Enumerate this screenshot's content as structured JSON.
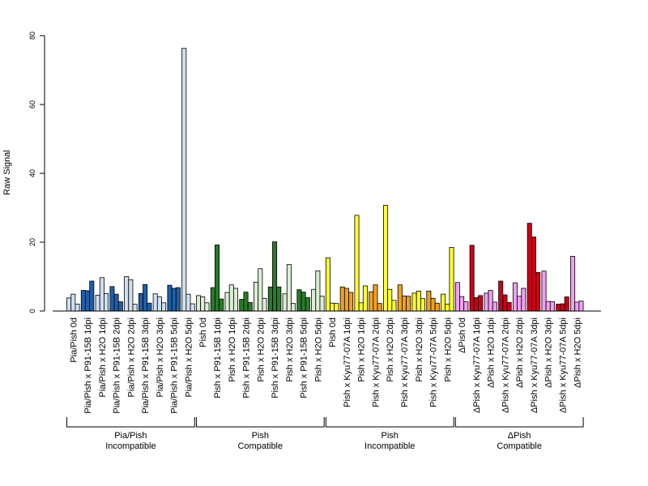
{
  "chart_data": {
    "type": "bar",
    "ylabel": "Raw Signal",
    "ylim": [
      0,
      80
    ],
    "yticks": [
      0,
      20,
      40,
      60,
      80
    ],
    "bars_per_category": 3,
    "categories": [
      {
        "label": "Pia/Pish 0d",
        "values": [
          3.8,
          4.9,
          2.0
        ],
        "color": "#cfe0f0"
      },
      {
        "label": "Pia/Pish x P91-15B 1dpi",
        "values": [
          6.0,
          5.9,
          8.7
        ],
        "color": "#1f5fa8"
      },
      {
        "label": "Pia/Pish x H2O 1dpi",
        "values": [
          4.6,
          9.7,
          5.1
        ],
        "color": "#cfe0f0"
      },
      {
        "label": "Pia/Pish x P91-15B 2dpi",
        "values": [
          7.1,
          4.9,
          2.7
        ],
        "color": "#1f5fa8"
      },
      {
        "label": "Pia/Pish x H2O 2dpi",
        "values": [
          10.0,
          9.1,
          2.0
        ],
        "color": "#cfe0f0"
      },
      {
        "label": "Pia/Pish x P91-15B 3dpi",
        "values": [
          5.1,
          7.7,
          2.3
        ],
        "color": "#1f5fa8"
      },
      {
        "label": "Pia/Pish x H2O 3dpi",
        "values": [
          5.0,
          4.1,
          2.4
        ],
        "color": "#cfe0f0"
      },
      {
        "label": "Pia/Pish x P91-15B 5dpi",
        "values": [
          7.5,
          6.6,
          6.8
        ],
        "color": "#1f5fa8"
      },
      {
        "label": "Pia/Pish x H2O 5dpi",
        "values": [
          76.3,
          4.9,
          2.1
        ],
        "color": "#cfe0f0"
      },
      {
        "label": "Pish 0d",
        "values": [
          4.5,
          4.1,
          2.4
        ],
        "color": "#dcedd5"
      },
      {
        "label": "Pish x P91-15B 1dpi",
        "values": [
          6.8,
          19.2,
          3.5
        ],
        "color": "#2a7a2a"
      },
      {
        "label": "Pish x H2O 1dpi",
        "values": [
          5.4,
          7.6,
          6.6
        ],
        "color": "#dcedd5"
      },
      {
        "label": "Pish x P91-15B 2dpi",
        "values": [
          3.4,
          5.5,
          2.5
        ],
        "color": "#2a7a2a"
      },
      {
        "label": "Pish x H2O 2dpi",
        "values": [
          8.4,
          12.3,
          3.7
        ],
        "color": "#dcedd5"
      },
      {
        "label": "Pish x P91-15B 3dpi",
        "values": [
          7.0,
          20.1,
          7.0
        ],
        "color": "#2a7a2a"
      },
      {
        "label": "Pish x H2O 3dpi",
        "values": [
          5.0,
          13.5,
          2.2
        ],
        "color": "#dcedd5"
      },
      {
        "label": "Pish x P91-15B 5dpi",
        "values": [
          6.2,
          5.5,
          3.9
        ],
        "color": "#2a7a2a"
      },
      {
        "label": "Pish x H2O 5dpi",
        "values": [
          6.3,
          11.7,
          4.3
        ],
        "color": "#dcedd5"
      },
      {
        "label": "Pish 0d",
        "values": [
          15.5,
          2.3,
          2.2
        ],
        "color": "#ffff33"
      },
      {
        "label": "Pish x Kyu77-07A 1dpi",
        "values": [
          7.0,
          6.6,
          5.4
        ],
        "color": "#f0a020"
      },
      {
        "label": "Pish x H2O 1dpi",
        "values": [
          27.8,
          2.4,
          7.3
        ],
        "color": "#ffff33"
      },
      {
        "label": "Pish x Kyu77-07A 2dpi",
        "values": [
          5.6,
          7.6,
          2.2
        ],
        "color": "#f0a020"
      },
      {
        "label": "Pish x H2O 2dpi",
        "values": [
          30.7,
          6.3,
          3.1
        ],
        "color": "#ffff33"
      },
      {
        "label": "Pish x Kyu77-07A 3dpi",
        "values": [
          7.6,
          4.4,
          4.3
        ],
        "color": "#f0a020"
      },
      {
        "label": "Pish x H2O 3dpi",
        "values": [
          5.2,
          5.8,
          3.6
        ],
        "color": "#ffff33"
      },
      {
        "label": "Pish x Kyu77-07A 5dpi",
        "values": [
          5.8,
          3.7,
          2.3
        ],
        "color": "#f0a020"
      },
      {
        "label": "Pish x H2O 5dpi",
        "values": [
          4.9,
          2.0,
          18.5
        ],
        "color": "#ffff33"
      },
      {
        "label": "ΔPish 0d",
        "values": [
          8.3,
          4.2,
          2.7
        ],
        "color": "#f0a0f0"
      },
      {
        "label": "ΔPish x Kyu77-07A 1dpi",
        "values": [
          19.1,
          3.9,
          4.5
        ],
        "color": "#cc0018"
      },
      {
        "label": "ΔPish x H2O 1dpi",
        "values": [
          5.2,
          6.0,
          2.6
        ],
        "color": "#f0a0f0"
      },
      {
        "label": "ΔPish x Kyu77-07A 2dpi",
        "values": [
          8.7,
          4.7,
          2.5
        ],
        "color": "#cc0018"
      },
      {
        "label": "ΔPish x H2O 2dpi",
        "values": [
          8.2,
          4.3,
          6.6
        ],
        "color": "#f0a0f0"
      },
      {
        "label": "ΔPish x Kyu77-07A 3dpi",
        "values": [
          25.5,
          21.5,
          11.2
        ],
        "color": "#cc0018"
      },
      {
        "label": "ΔPish x H2O 3dpi",
        "values": [
          11.6,
          2.8,
          2.7
        ],
        "color": "#f0a0f0"
      },
      {
        "label": "ΔPish x Kyu77-07A 5dpi",
        "values": [
          2.0,
          2.1,
          4.1
        ],
        "color": "#cc0018"
      },
      {
        "label": "ΔPish x H2O 5dpi",
        "values": [
          15.9,
          2.6,
          2.9
        ],
        "color": "#f0a0f0"
      }
    ],
    "groups": [
      {
        "line1": "Pia/Pish",
        "line2": "Incompatible",
        "start": 0,
        "end": 8
      },
      {
        "line1": "Pish",
        "line2": "Compatible",
        "start": 9,
        "end": 17
      },
      {
        "line1": "Pish",
        "line2": "Incompatible",
        "start": 18,
        "end": 26
      },
      {
        "line1": "ΔPish",
        "line2": "Compatible",
        "start": 27,
        "end": 35
      }
    ],
    "colors": {
      "axis": "#000000",
      "bar_outline": "#000000"
    }
  }
}
